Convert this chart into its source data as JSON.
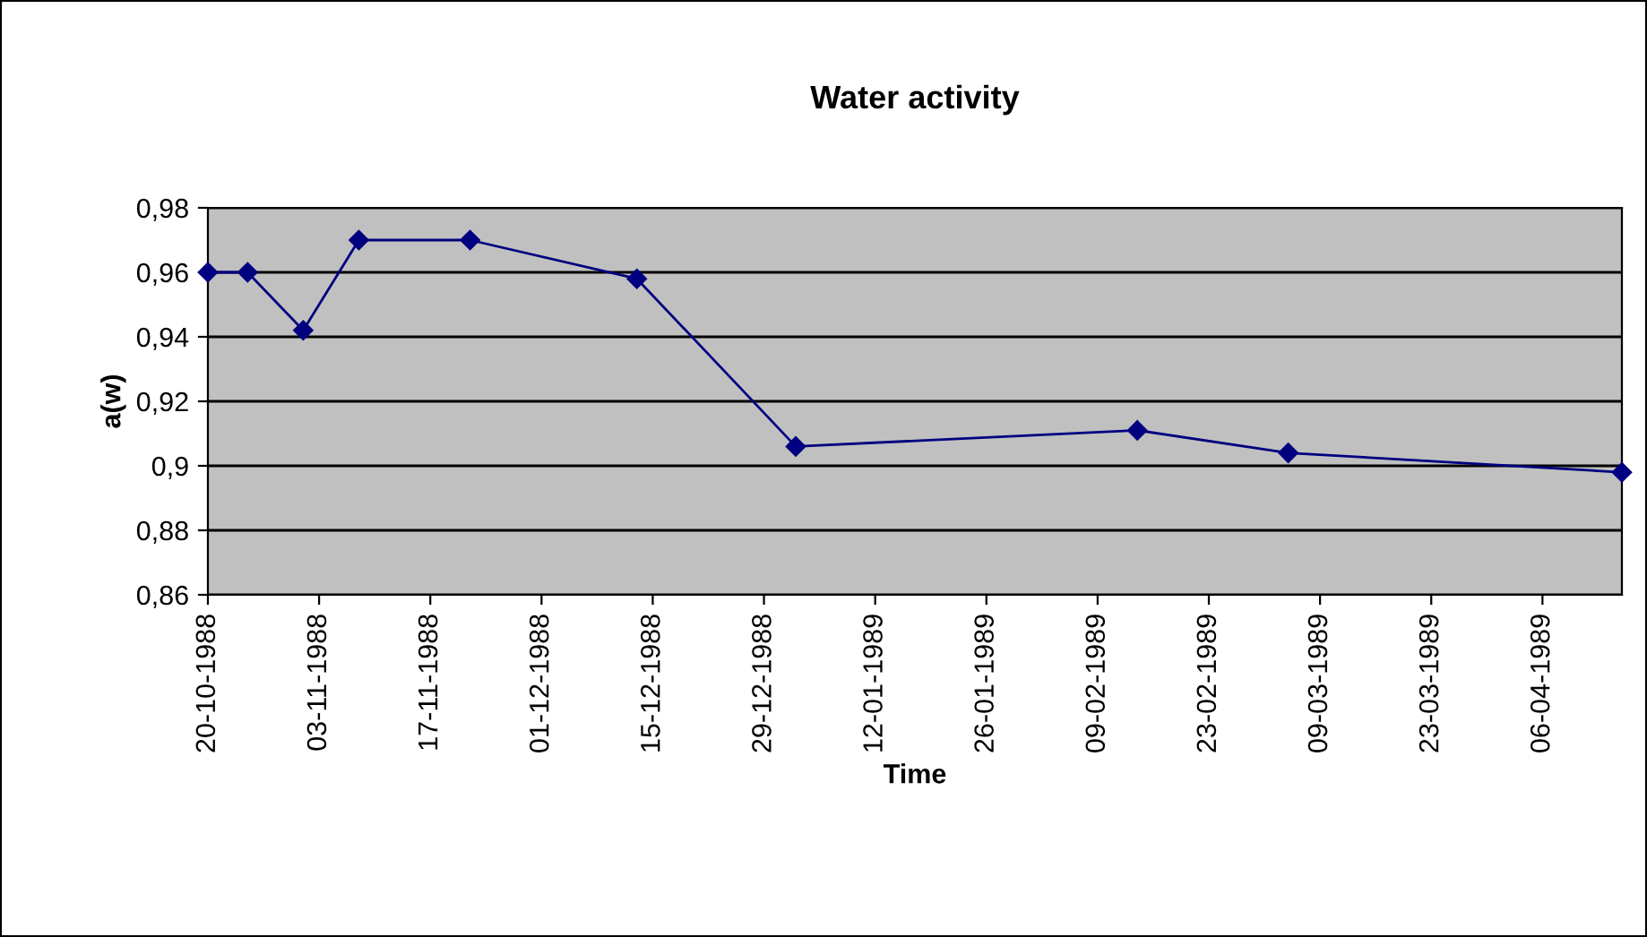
{
  "chart_data": {
    "type": "line",
    "title": "Water activity",
    "xlabel": "Time",
    "ylabel": "a(w)",
    "x": [
      "1988-10-20",
      "1988-10-25",
      "1988-11-01",
      "1988-11-08",
      "1988-11-22",
      "1988-12-13",
      "1989-01-02",
      "1989-02-14",
      "1989-03-05",
      "1989-04-16"
    ],
    "series": [
      {
        "color": "#000080",
        "values": [
          0.96,
          0.96,
          0.942,
          0.97,
          0.97,
          0.958,
          0.906,
          0.911,
          0.904,
          0.898
        ]
      }
    ],
    "xlim": [
      "1988-10-20",
      "1989-04-16"
    ],
    "xticks": [
      {
        "value": "1988-10-20",
        "label": "20-10-1988"
      },
      {
        "value": "1988-11-03",
        "label": "03-11-1988"
      },
      {
        "value": "1988-11-17",
        "label": "17-11-1988"
      },
      {
        "value": "1988-12-01",
        "label": "01-12-1988"
      },
      {
        "value": "1988-12-15",
        "label": "15-12-1988"
      },
      {
        "value": "1988-12-29",
        "label": "29-12-1988"
      },
      {
        "value": "1989-01-12",
        "label": "12-01-1989"
      },
      {
        "value": "1989-01-26",
        "label": "26-01-1989"
      },
      {
        "value": "1989-02-09",
        "label": "09-02-1989"
      },
      {
        "value": "1989-02-23",
        "label": "23-02-1989"
      },
      {
        "value": "1989-03-09",
        "label": "09-03-1989"
      },
      {
        "value": "1989-03-23",
        "label": "23-03-1989"
      },
      {
        "value": "1989-04-06",
        "label": "06-04-1989"
      }
    ],
    "ylim": [
      0.86,
      0.98
    ],
    "yticks": [
      {
        "value": 0.86,
        "label": "0,86"
      },
      {
        "value": 0.88,
        "label": "0,88"
      },
      {
        "value": 0.9,
        "label": "0,9"
      },
      {
        "value": 0.92,
        "label": "0,92"
      },
      {
        "value": 0.94,
        "label": "0,94"
      },
      {
        "value": 0.96,
        "label": "0,96"
      },
      {
        "value": 0.98,
        "label": "0,98"
      }
    ],
    "grid": "y",
    "marker": "diamond",
    "line_style": "solid",
    "legend": false
  }
}
